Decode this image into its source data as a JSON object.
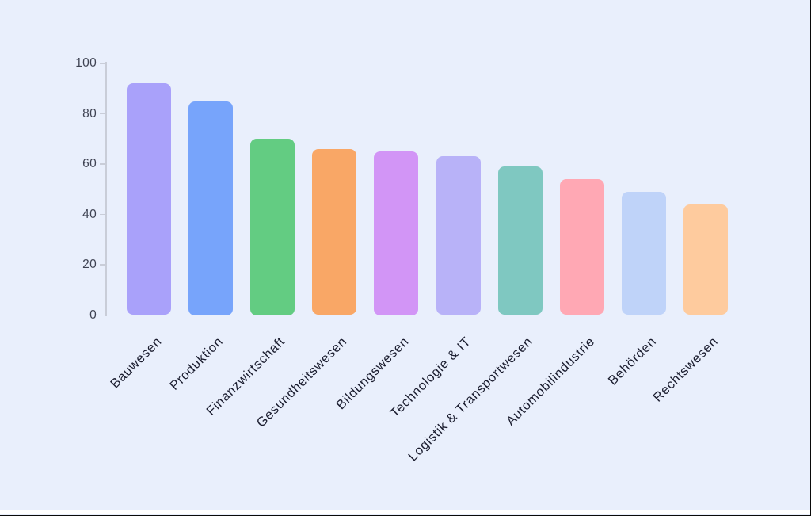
{
  "page": {
    "background_color": "#e9effc",
    "bottom_strip_color": "#ffffff"
  },
  "chart_data": {
    "type": "bar",
    "title": "",
    "xlabel": "",
    "ylabel": "",
    "categories": [
      "Bauwesen",
      "Produktion",
      "Finanzwirtschaft",
      "Gesundheitswesen",
      "Bildungswesen",
      "Technologie & IT",
      "Logistik & Transportwesen",
      "Automobilindustrie",
      "Behörden",
      "Rechtswesen"
    ],
    "values": [
      92,
      85,
      70,
      66,
      65,
      63,
      59,
      54,
      49,
      44
    ],
    "bar_colors": [
      "#a9a1fa",
      "#77a4fb",
      "#63cc82",
      "#f9a766",
      "#d295f6",
      "#b8b2f8",
      "#7fc8c1",
      "#ffa8b4",
      "#bfd3f9",
      "#fecb9e"
    ],
    "ylim": [
      0,
      100
    ],
    "yticks": [
      0,
      20,
      40,
      60,
      80,
      100
    ],
    "grid": false,
    "legend": false,
    "x_label_rotation_deg": -45,
    "axis_color": "#c9cdd8",
    "tick_label_color": "#3e4252",
    "category_label_color": "#1a1c2e"
  }
}
